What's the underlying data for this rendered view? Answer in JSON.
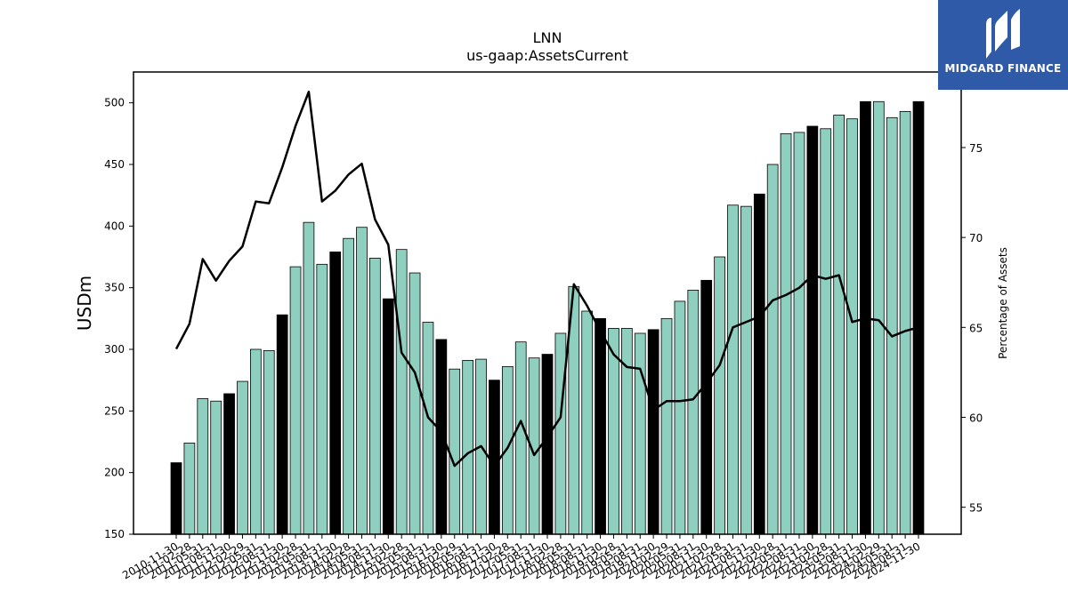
{
  "colors": {
    "bar_teal": "#8ecfc0",
    "bar_black": "#000000",
    "line": "#000000",
    "logo_bg": "#2f5aa8"
  },
  "logo": {
    "text": "MIDGARD FINANCE",
    "icon": "midgard-m-icon"
  },
  "chart_data": {
    "type": "bar",
    "title": "LNN",
    "subtitle": "us-gaap:AssetsCurrent",
    "ylabel": "USDm",
    "y2label": "Percentage of Assets",
    "ylim": [
      150,
      525
    ],
    "y2lim": [
      53.5,
      79.2
    ],
    "yticks": [
      150,
      200,
      250,
      300,
      350,
      400,
      450,
      500
    ],
    "y2ticks": [
      55,
      60,
      65,
      70,
      75
    ],
    "grid": false,
    "categories": [
      "2010-11-30",
      "2011-02-28",
      "2011-05-31",
      "2011-08-31",
      "2011-11-30",
      "2012-02-29",
      "2012-05-31",
      "2012-08-31",
      "2012-11-30",
      "2013-02-28",
      "2013-05-31",
      "2013-08-31",
      "2013-11-30",
      "2014-02-28",
      "2014-05-31",
      "2014-08-31",
      "2014-11-30",
      "2015-02-28",
      "2015-05-31",
      "2015-08-31",
      "2015-11-30",
      "2016-02-29",
      "2016-05-31",
      "2016-08-31",
      "2016-11-30",
      "2017-02-28",
      "2017-05-31",
      "2017-08-31",
      "2017-11-30",
      "2018-02-28",
      "2018-05-31",
      "2018-08-31",
      "2018-11-30",
      "2019-02-28",
      "2019-05-31",
      "2019-08-31",
      "2019-11-30",
      "2020-02-29",
      "2020-05-31",
      "2020-08-31",
      "2020-11-30",
      "2021-02-28",
      "2021-05-31",
      "2021-08-31",
      "2021-11-30",
      "2022-02-28",
      "2022-05-31",
      "2022-08-31",
      "2022-11-30",
      "2023-02-28",
      "2023-05-31",
      "2023-08-31",
      "2023-11-30",
      "2024-02-29",
      "2024-05-31",
      "2024-08-31",
      "2024-11-30"
    ],
    "series": [
      {
        "type": "bar",
        "axis": "left",
        "values": [
          208,
          224,
          260,
          258,
          264,
          274,
          300,
          299,
          328,
          367,
          403,
          369,
          379,
          390,
          399,
          374,
          341,
          381,
          362,
          322,
          308,
          284,
          291,
          292,
          275,
          286,
          306,
          293,
          296,
          313,
          351,
          331,
          325,
          317,
          317,
          313,
          316,
          325,
          339,
          348,
          356,
          375,
          417,
          416,
          426,
          450,
          475,
          476,
          481,
          479,
          490,
          487,
          501,
          501,
          488,
          493,
          501
        ],
        "highlight": [
          1,
          0,
          0,
          0,
          1,
          0,
          0,
          0,
          1,
          0,
          0,
          0,
          1,
          0,
          0,
          0,
          1,
          0,
          0,
          0,
          1,
          0,
          0,
          0,
          1,
          0,
          0,
          0,
          1,
          0,
          0,
          0,
          1,
          0,
          0,
          0,
          1,
          0,
          0,
          0,
          1,
          0,
          0,
          0,
          1,
          0,
          0,
          0,
          1,
          0,
          0,
          0,
          1,
          0,
          0,
          0,
          1
        ]
      },
      {
        "type": "line",
        "axis": "right",
        "values": [
          63.8,
          65.2,
          68.8,
          67.6,
          68.7,
          69.5,
          72.0,
          71.9,
          73.9,
          76.2,
          78.1,
          72.0,
          72.6,
          73.5,
          74.1,
          71.0,
          69.6,
          63.6,
          62.5,
          60.0,
          59.2,
          57.3,
          58.0,
          58.4,
          57.3,
          58.3,
          59.8,
          57.9,
          58.9,
          60.0,
          67.4,
          66.2,
          64.8,
          63.5,
          62.8,
          62.7,
          60.4,
          60.9,
          60.9,
          61.0,
          61.9,
          62.9,
          65.0,
          65.3,
          65.6,
          66.5,
          66.8,
          67.2,
          67.9,
          67.7,
          67.9,
          65.3,
          65.5,
          65.4,
          64.5,
          64.8,
          65.0
        ]
      }
    ]
  }
}
